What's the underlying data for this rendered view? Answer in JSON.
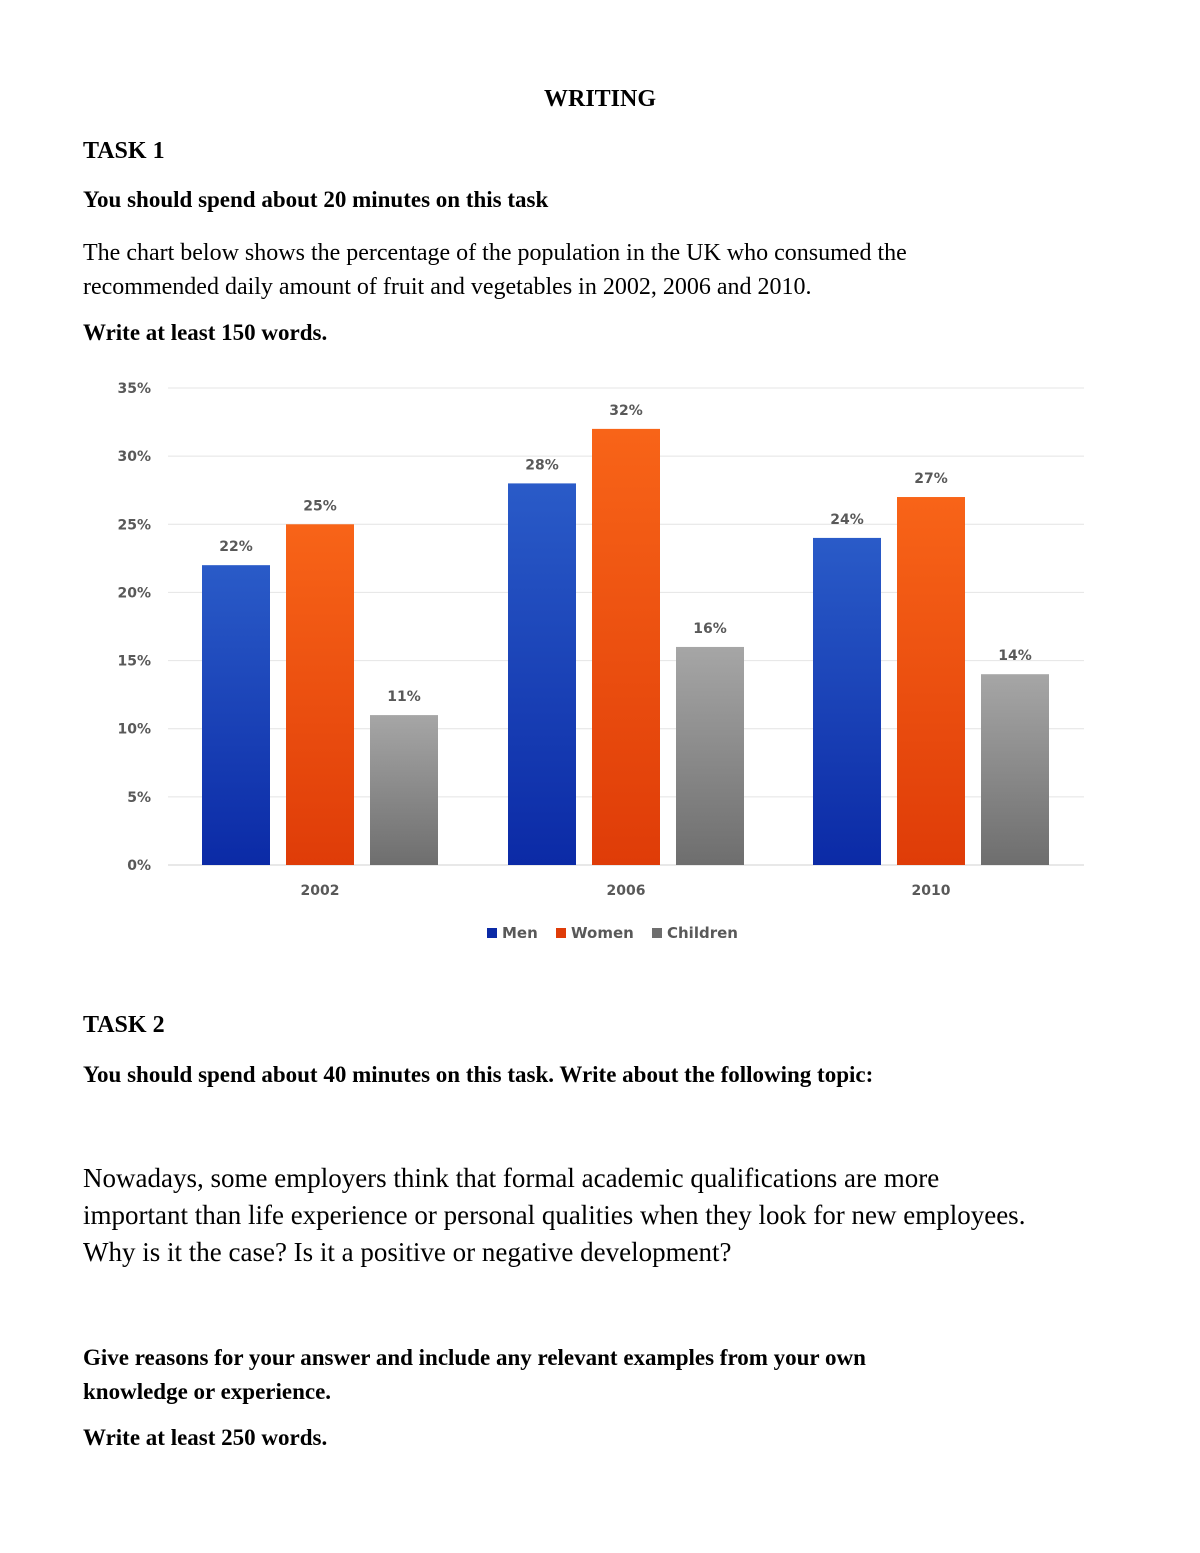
{
  "heading": "WRITING",
  "task1": {
    "title": "TASK 1",
    "time": "You should spend about 20 minutes on this task",
    "prompt_line1": "The chart below shows the percentage of the population in the UK who consumed the",
    "prompt_line2": "recommended daily amount of fruit and vegetables in 2002, 2006 and 2010.",
    "words": "Write at least 150 words."
  },
  "task2": {
    "title": "TASK 2",
    "time": "You should spend about 40 minutes on this task. Write about the following topic:",
    "topic_line1": "Nowadays, some employers think that formal academic qualifications are more",
    "topic_line2": "important than life experience or personal qualities when they look for new employees.",
    "topic_line3": "Why is it the case? Is it a positive or negative development?",
    "reasons_line1": "Give reasons for your answer and include any relevant examples from your own",
    "reasons_line2": "knowledge or experience.",
    "words": "Write at least 250 words."
  },
  "chart_data": {
    "type": "bar",
    "categories": [
      "2002",
      "2006",
      "2010"
    ],
    "series": [
      {
        "name": "Men",
        "values": [
          22,
          28,
          24
        ],
        "color_top": "#2a5bc8",
        "color_bottom": "#0b2aa6"
      },
      {
        "name": "Women",
        "values": [
          25,
          32,
          27
        ],
        "color_top": "#f86418",
        "color_bottom": "#df3c08"
      },
      {
        "name": "Children",
        "values": [
          11,
          16,
          14
        ],
        "color_top": "#a6a6a6",
        "color_bottom": "#6e6e6e"
      }
    ],
    "data_labels": [
      [
        "22%",
        "28%",
        "24%"
      ],
      [
        "25%",
        "32%",
        "27%"
      ],
      [
        "11%",
        "16%",
        "14%"
      ]
    ],
    "yticks": [
      "0%",
      "5%",
      "10%",
      "15%",
      "20%",
      "25%",
      "30%",
      "35%"
    ],
    "ylim": [
      0,
      35
    ],
    "grid": true,
    "legend_position": "bottom",
    "unit": "%"
  }
}
